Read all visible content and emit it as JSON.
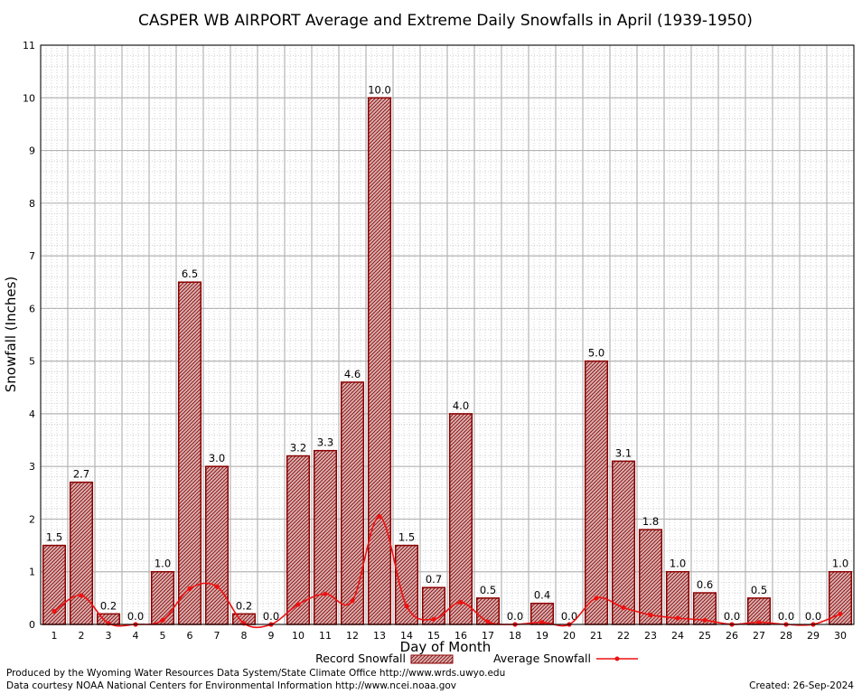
{
  "chart_data": {
    "type": "bar",
    "title": "CASPER WB AIRPORT Average and Extreme Daily Snowfalls in April (1939-1950)",
    "xlabel": "Day of Month",
    "ylabel": "Snowfall (Inches)",
    "ylim": [
      0,
      11
    ],
    "yticks": [
      "0",
      "1",
      "2",
      "3",
      "4",
      "5",
      "6",
      "7",
      "8",
      "9",
      "10",
      "11"
    ],
    "grid": true,
    "legend_position": "bottom-center",
    "categories": [
      "1",
      "2",
      "3",
      "4",
      "5",
      "6",
      "7",
      "8",
      "9",
      "10",
      "11",
      "12",
      "13",
      "14",
      "15",
      "16",
      "17",
      "18",
      "19",
      "20",
      "21",
      "22",
      "23",
      "24",
      "25",
      "26",
      "27",
      "28",
      "29",
      "30"
    ],
    "series": [
      {
        "name": "Record Snowfall",
        "kind": "bar",
        "color": "#8b0000",
        "values": [
          1.5,
          2.7,
          0.2,
          0.0,
          1.0,
          6.5,
          3.0,
          0.2,
          0.0,
          3.2,
          3.3,
          4.6,
          10.0,
          1.5,
          0.7,
          4.0,
          0.5,
          0.0,
          0.4,
          0.0,
          5.0,
          3.1,
          1.8,
          1.0,
          0.6,
          0.0,
          0.5,
          0.0,
          0.0,
          1.0
        ],
        "labels": [
          "1.5",
          "2.7",
          "0.2",
          "0.0",
          "1.0",
          "6.5",
          "3.0",
          "0.2",
          "0.0",
          "3.2",
          "3.3",
          "4.6",
          "10.0",
          "1.5",
          "0.7",
          "4.0",
          "0.5",
          "0.0",
          "0.4",
          "0.0",
          "5.0",
          "3.1",
          "1.8",
          "1.0",
          "0.6",
          "0.0",
          "0.5",
          "0.0",
          "0.0",
          "1.0"
        ]
      },
      {
        "name": "Average Snowfall",
        "kind": "line",
        "color": "#ee1111",
        "values": [
          0.25,
          0.55,
          0.02,
          0.0,
          0.08,
          0.68,
          0.72,
          0.02,
          0.0,
          0.38,
          0.58,
          0.45,
          2.05,
          0.35,
          0.1,
          0.42,
          0.05,
          0.0,
          0.04,
          0.0,
          0.5,
          0.32,
          0.18,
          0.12,
          0.08,
          0.0,
          0.04,
          0.0,
          0.0,
          0.2
        ]
      }
    ]
  },
  "footer": {
    "left_line1": "Produced by the Wyoming Water Resources Data System/State Climate Office http://www.wrds.uwyo.edu",
    "left_line2": "Data courtesy NOAA National Centers for Environmental Information http://www.ncei.noaa.gov",
    "created": "Created:  26-Sep-2024"
  }
}
